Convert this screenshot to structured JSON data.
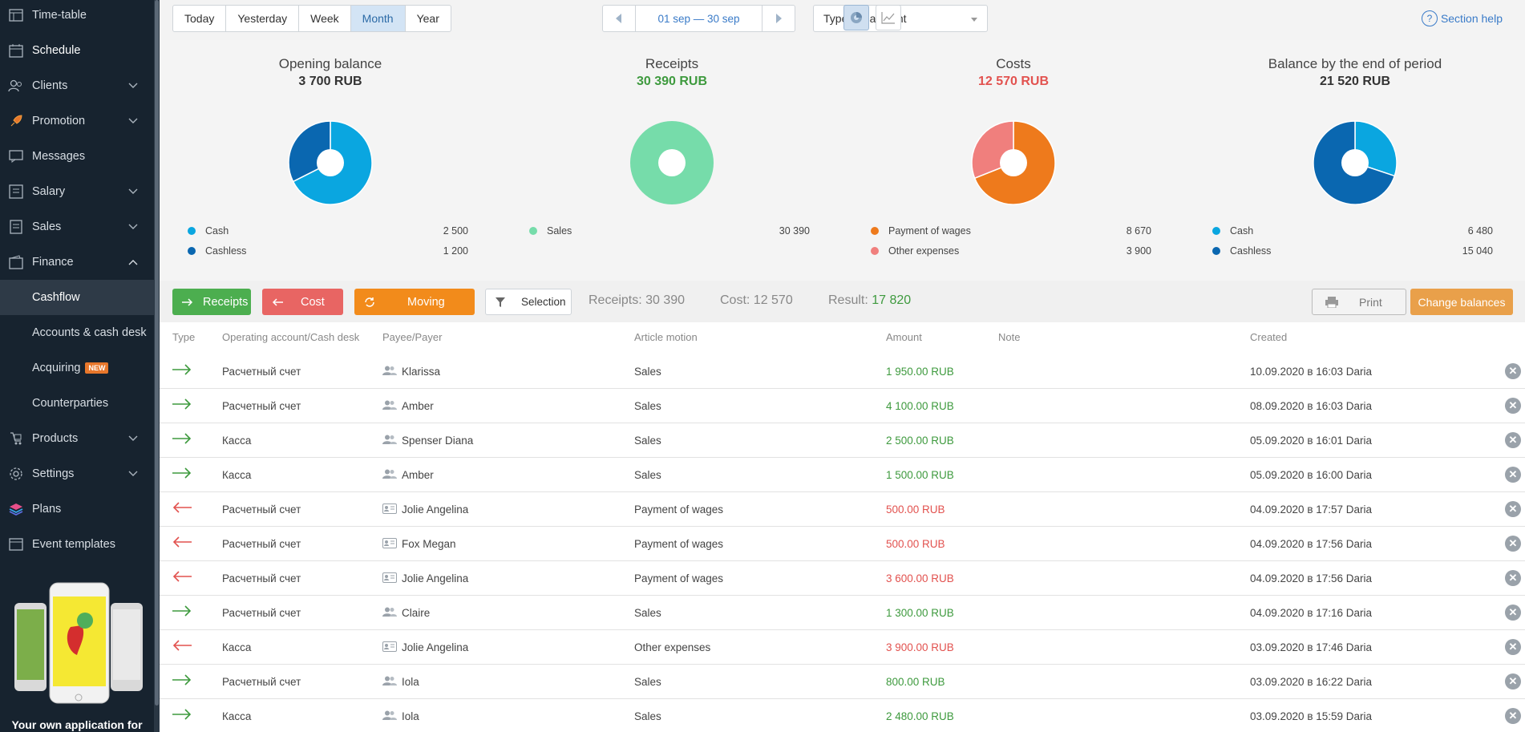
{
  "sidebar": {
    "items": [
      {
        "label": "Time-table",
        "icon": "timetable-icon"
      },
      {
        "label": "Schedule",
        "icon": "calendar-icon"
      },
      {
        "label": "Clients",
        "icon": "clients-icon"
      },
      {
        "label": "Promotion",
        "icon": "rocket-icon"
      },
      {
        "label": "Messages",
        "icon": "messages-icon"
      },
      {
        "label": "Salary",
        "icon": "salary-icon"
      },
      {
        "label": "Sales",
        "icon": "sales-icon"
      },
      {
        "label": "Finance",
        "icon": "finance-icon"
      }
    ],
    "finance_sub": [
      {
        "label": "Cashflow"
      },
      {
        "label": "Accounts & cash desk"
      },
      {
        "label": "Acquiring"
      },
      {
        "label": "Counterparties"
      }
    ],
    "acquiring_badge": "NEW",
    "items_bottom": [
      {
        "label": "Products",
        "icon": "products-icon"
      },
      {
        "label": "Settings",
        "icon": "gear-icon"
      },
      {
        "label": "Plans",
        "icon": "layers-icon"
      },
      {
        "label": "Event templates",
        "icon": "templates-icon"
      }
    ],
    "promo_text": "Your own application for"
  },
  "toolbar": {
    "periods": [
      "Today",
      "Yesterday",
      "Week",
      "Month",
      "Year"
    ],
    "selected_period": "Month",
    "date_range": "01 sep — 30 sep",
    "payment_type": "Type of payment",
    "help": "Section help"
  },
  "summary": {
    "opening": {
      "title": "Opening balance",
      "value": "3 700 RUB",
      "legend": [
        {
          "label": "Cash",
          "value": "2 500",
          "color": "#0aa6e0"
        },
        {
          "label": "Cashless",
          "value": "1 200",
          "color": "#0a67b0"
        }
      ]
    },
    "receipts": {
      "title": "Receipts",
      "value": "30 390 RUB",
      "legend": [
        {
          "label": "Sales",
          "value": "30 390",
          "color": "#76dcaa"
        }
      ]
    },
    "costs": {
      "title": "Costs",
      "value": "12 570 RUB",
      "legend": [
        {
          "label": "Payment of wages",
          "value": "8 670",
          "color": "#ee7a1c"
        },
        {
          "label": "Other expenses",
          "value": "3 900",
          "color": "#f07f7d"
        }
      ]
    },
    "closing": {
      "title": "Balance by the end of period",
      "value": "21 520 RUB",
      "legend": [
        {
          "label": "Cash",
          "value": "6 480",
          "color": "#0aa6e0"
        },
        {
          "label": "Cashless",
          "value": "15 040",
          "color": "#0a67b0"
        }
      ]
    }
  },
  "actions": {
    "receipts": "Receipts",
    "cost": "Cost",
    "moving": "Moving",
    "selection": "Selection",
    "receipts_total": "Receipts: 30 390",
    "cost_total": "Cost: 12 570",
    "result_label": "Result:",
    "result_value": "17 820",
    "print": "Print",
    "change_balances": "Change balances"
  },
  "table": {
    "headers": [
      "Type",
      "Operating account/Cash desk",
      "Payee/Payer",
      "Article motion",
      "Amount",
      "Note",
      "Created"
    ],
    "rows": [
      {
        "dir": "in",
        "account": "Расчетный счет",
        "payer_type": "client",
        "payee": "Klarissa",
        "article": "Sales",
        "amount": "1 950.00 RUB",
        "note": "",
        "created": "10.09.2020 в 16:03 Daria"
      },
      {
        "dir": "in",
        "account": "Расчетный счет",
        "payer_type": "client",
        "payee": "Amber",
        "article": "Sales",
        "amount": "4 100.00 RUB",
        "note": "",
        "created": "08.09.2020 в 16:03 Daria"
      },
      {
        "dir": "in",
        "account": "Касса",
        "payer_type": "client",
        "payee": "Spenser Diana",
        "article": "Sales",
        "amount": "2 500.00 RUB",
        "note": "",
        "created": "05.09.2020 в 16:01 Daria"
      },
      {
        "dir": "in",
        "account": "Касса",
        "payer_type": "client",
        "payee": "Amber",
        "article": "Sales",
        "amount": "1 500.00 RUB",
        "note": "",
        "created": "05.09.2020 в 16:00 Daria"
      },
      {
        "dir": "out",
        "account": "Расчетный счет",
        "payer_type": "staff",
        "payee": "Jolie Angelina",
        "article": "Payment of wages",
        "amount": "500.00 RUB",
        "note": "",
        "created": "04.09.2020 в 17:57 Daria"
      },
      {
        "dir": "out",
        "account": "Расчетный счет",
        "payer_type": "staff",
        "payee": "Fox Megan",
        "article": "Payment of wages",
        "amount": "500.00 RUB",
        "note": "",
        "created": "04.09.2020 в 17:56 Daria"
      },
      {
        "dir": "out",
        "account": "Расчетный счет",
        "payer_type": "staff",
        "payee": "Jolie Angelina",
        "article": "Payment of wages",
        "amount": "3 600.00 RUB",
        "note": "",
        "created": "04.09.2020 в 17:56 Daria"
      },
      {
        "dir": "in",
        "account": "Расчетный счет",
        "payer_type": "client",
        "payee": "Claire",
        "article": "Sales",
        "amount": "1 300.00 RUB",
        "note": "",
        "created": "04.09.2020 в 17:16 Daria"
      },
      {
        "dir": "out",
        "account": "Касса",
        "payer_type": "staff",
        "payee": "Jolie Angelina",
        "article": "Other expenses",
        "amount": "3 900.00 RUB",
        "note": "",
        "created": "03.09.2020 в 17:46 Daria"
      },
      {
        "dir": "in",
        "account": "Расчетный счет",
        "payer_type": "client",
        "payee": "Iola",
        "article": "Sales",
        "amount": "800.00 RUB",
        "note": "",
        "created": "03.09.2020 в 16:22 Daria"
      },
      {
        "dir": "in",
        "account": "Касса",
        "payer_type": "client",
        "payee": "Iola",
        "article": "Sales",
        "amount": "2 480.00 RUB",
        "note": "",
        "created": "03.09.2020 в 15:59 Daria"
      }
    ]
  },
  "colors": {
    "green": "#3e9a3e",
    "red": "#e2524f",
    "sidebar": "#17232f",
    "accent_blue": "#3a7bc8"
  }
}
